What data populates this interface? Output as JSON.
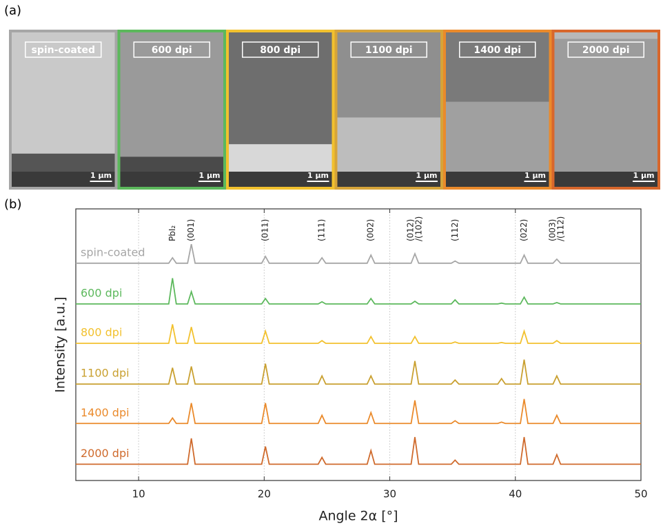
{
  "panel_labels": [
    "(a)",
    "(b)"
  ],
  "sem_images": [
    {
      "label": "spin-coated",
      "scale": "1 µm",
      "color": "#a6a6a6"
    },
    {
      "label": "600 dpi",
      "scale": "1 µm",
      "color": "#5cb85c"
    },
    {
      "label": "800 dpi",
      "scale": "1 µm",
      "color": "#f2c12e"
    },
    {
      "label": "1100 dpi",
      "scale": "1 µm",
      "color": "#d6a43a"
    },
    {
      "label": "1400 dpi",
      "scale": "1 µm",
      "color": "#ea8a2b"
    },
    {
      "label": "2000 dpi",
      "scale": "1 µm",
      "color": "#d8672c"
    }
  ],
  "chart_data": {
    "type": "line",
    "x_label": "Angle 2α [°]",
    "y_label": "Intensity [a.u.]",
    "xlim": [
      5,
      50
    ],
    "xticks": [
      10,
      20,
      30,
      40,
      50
    ],
    "ylim": [
      0,
      100
    ],
    "grid": true,
    "annotations": [
      {
        "lines": [
          "PbI₂"
        ],
        "x": 12.7
      },
      {
        "lines": [
          "(001)"
        ],
        "x": 14.2
      },
      {
        "lines": [
          "(011)"
        ],
        "x": 20.1
      },
      {
        "lines": [
          "(111)"
        ],
        "x": 24.6
      },
      {
        "lines": [
          "(002)"
        ],
        "x": 28.5
      },
      {
        "lines": [
          "(012)",
          "/(102)"
        ],
        "x": 32.0
      },
      {
        "lines": [
          "(112)"
        ],
        "x": 35.2
      },
      {
        "lines": [
          "(022)"
        ],
        "x": 40.7
      },
      {
        "lines": [
          "(003)",
          "/(112)"
        ],
        "x": 43.3
      }
    ],
    "x": [
      5,
      12.4,
      12.7,
      13.0,
      13.9,
      14.2,
      14.5,
      19.8,
      20.1,
      20.4,
      24.3,
      24.6,
      24.9,
      28.2,
      28.5,
      28.8,
      31.7,
      32.0,
      32.3,
      34.9,
      35.2,
      35.5,
      38.6,
      38.9,
      39.2,
      40.4,
      40.7,
      41.0,
      43.0,
      43.3,
      43.6,
      50
    ],
    "series": [
      {
        "name": "spin-coated",
        "color": "#a6a6a6",
        "values": [
          80,
          80,
          82,
          80,
          80,
          87,
          80,
          80,
          82.5,
          80,
          80,
          82,
          80,
          80,
          83,
          80,
          80,
          83.5,
          80,
          80,
          80.8,
          80,
          80,
          80,
          80,
          80,
          83,
          80,
          80,
          81.5,
          80,
          80
        ]
      },
      {
        "name": "600 dpi",
        "color": "#5cb85c",
        "values": [
          65,
          65,
          74.5,
          65,
          65,
          69.5,
          65,
          65,
          67,
          65,
          65,
          65.8,
          65,
          65,
          67,
          65,
          65,
          66,
          65,
          65,
          66.5,
          65,
          65,
          65.3,
          65,
          65,
          67.5,
          65,
          65,
          65.5,
          65,
          65
        ]
      },
      {
        "name": "800 dpi",
        "color": "#f2c12e",
        "values": [
          50.5,
          50.5,
          57.5,
          50.5,
          50.5,
          56.5,
          50.5,
          50.5,
          55,
          50.5,
          50.5,
          51.5,
          50.5,
          50.5,
          53,
          50.5,
          50.5,
          53,
          50.5,
          50.5,
          51,
          50.5,
          50.5,
          50.8,
          50.5,
          50.5,
          55,
          50.5,
          50.5,
          51.5,
          50.5,
          50.5
        ]
      },
      {
        "name": "1100 dpi",
        "color": "#c9a030",
        "values": [
          35.5,
          35.5,
          41.5,
          35.5,
          35.5,
          42,
          35.5,
          35.5,
          43,
          35.5,
          35.5,
          38.5,
          35.5,
          35.5,
          38.5,
          35.5,
          35.5,
          44,
          35.5,
          35.5,
          37,
          35.5,
          35.5,
          37.5,
          35.5,
          35.5,
          44.5,
          35.5,
          35.5,
          38.5,
          35.5,
          35.5
        ]
      },
      {
        "name": "1400 dpi",
        "color": "#ea8a2b",
        "values": [
          21,
          21,
          23,
          21,
          21,
          28.5,
          21,
          21,
          28.5,
          21,
          21,
          24,
          21,
          21,
          25,
          21,
          21,
          29.5,
          21,
          21,
          22,
          21,
          21,
          21.5,
          21,
          21,
          30,
          21,
          21,
          24,
          21,
          21
        ]
      },
      {
        "name": "2000 dpi",
        "color": "#cf6a2c",
        "values": [
          6,
          6,
          6,
          6,
          6,
          15.5,
          6,
          6,
          12.5,
          6,
          6,
          8.5,
          6,
          6,
          11,
          6,
          6,
          16,
          6,
          6,
          7.5,
          6,
          6,
          6,
          6,
          6,
          16,
          6,
          6,
          9.5,
          6,
          6
        ]
      }
    ]
  }
}
